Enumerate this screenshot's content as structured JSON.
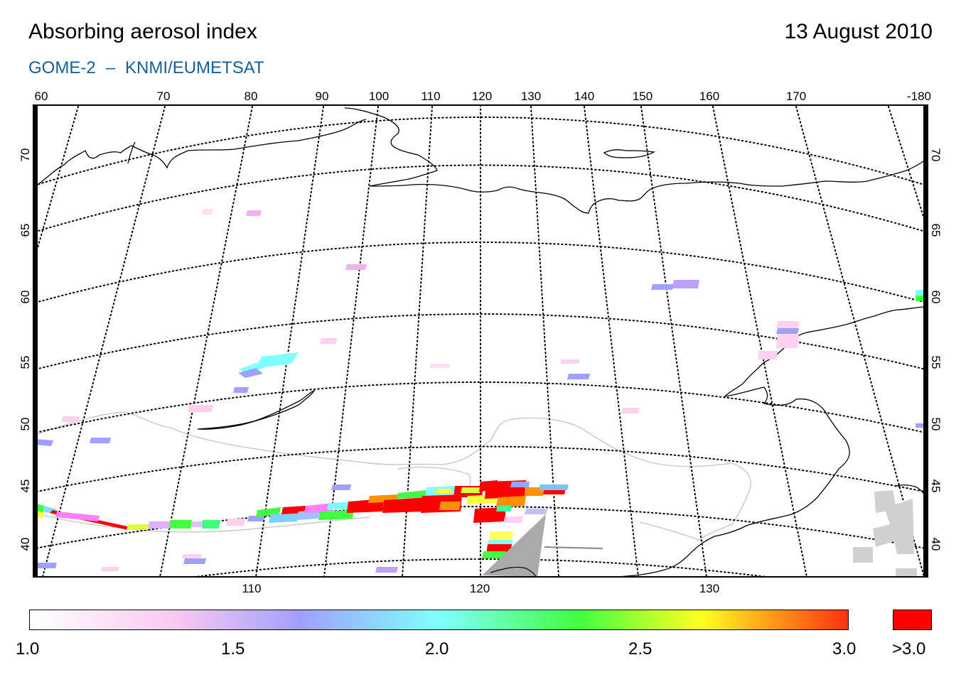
{
  "header": {
    "title": "Absorbing aerosol index",
    "date": "13 August 2010",
    "instrument": "GOME-2",
    "separator": "–",
    "agency": "KNMI/EUMETSAT"
  },
  "map": {
    "top_lon_labels": [
      "60",
      "70",
      "80",
      "90",
      "100",
      "110",
      "120",
      "130",
      "140",
      "150",
      "160",
      "170",
      "-180"
    ],
    "lat_labels": [
      "70",
      "65",
      "60",
      "55",
      "50",
      "45",
      "40"
    ],
    "bottom_lon_labels": [
      "110",
      "120",
      "130"
    ]
  },
  "colorbar": {
    "tick_labels": [
      "1.0",
      "1.5",
      "2.0",
      "2.5",
      "3.0"
    ],
    "saturation_label": ">3.0",
    "colors": [
      "#ffffff",
      "#f8c8f0",
      "#a0a0ff",
      "#80ffff",
      "#40ff40",
      "#ffff20",
      "#ff3010"
    ],
    "saturation_color": "#ff0000"
  }
}
